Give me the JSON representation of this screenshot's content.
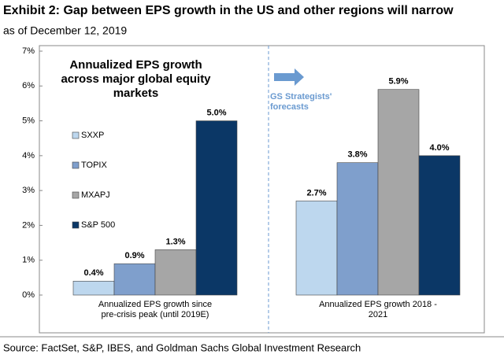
{
  "chart_data": {
    "type": "bar",
    "title": "Exhibit 2: Gap between EPS growth in the US and other regions will narrow",
    "subtitle": "as of December 12, 2019",
    "source": "Source: FactSet, S&P, IBES, and Goldman Sachs Global Investment Research",
    "annotations": [
      "Annualized EPS growth across major global equity markets",
      "GS Strategists' forecasts"
    ],
    "categories": [
      "Annualized EPS growth since pre-crisis peak (until 2019E)",
      "Annualized EPS growth 2018 - 2021"
    ],
    "series": [
      {
        "name": "SXXP",
        "color": "#bdd7ee",
        "values": [
          0.4,
          2.7
        ],
        "value_labels": [
          "0.4%",
          "2.7%"
        ]
      },
      {
        "name": "TOPIX",
        "color": "#7f9fcc",
        "values": [
          0.9,
          3.8
        ],
        "value_labels": [
          "0.9%",
          "3.8%"
        ]
      },
      {
        "name": "MXAPJ",
        "color": "#a6a6a6",
        "values": [
          1.3,
          5.9
        ],
        "value_labels": [
          "1.3%",
          "5.9%"
        ]
      },
      {
        "name": "S&P 500",
        "color": "#0b3766",
        "values": [
          5.0,
          4.0
        ],
        "value_labels": [
          "5.0%",
          "4.0%"
        ]
      }
    ],
    "ylim": [
      0,
      7
    ],
    "yticks": [
      {
        "value": 0,
        "label": "0%"
      },
      {
        "value": 1,
        "label": "1%"
      },
      {
        "value": 2,
        "label": "2%"
      },
      {
        "value": 3,
        "label": "3%"
      },
      {
        "value": 4,
        "label": "4%"
      },
      {
        "value": 5,
        "label": "5%"
      },
      {
        "value": 6,
        "label": "6%"
      },
      {
        "value": 7,
        "label": "7%"
      }
    ],
    "legend": "left"
  }
}
